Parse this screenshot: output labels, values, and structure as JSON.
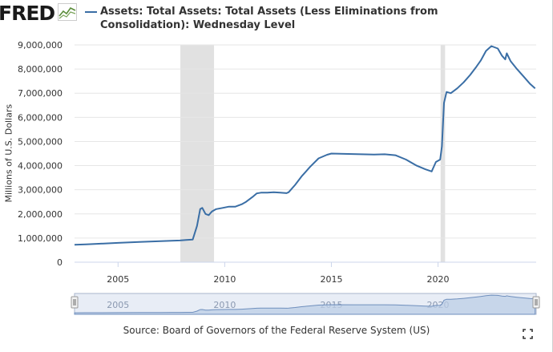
{
  "header": {
    "logo_text": "FRED",
    "title": "Assets: Total Assets: Total Assets (Less Eliminations from Consolidation): Wednesday Level"
  },
  "colors": {
    "series": "#3a6ea5",
    "recession": "#e1e1e1",
    "grid": "#e6e6e6",
    "navigator_fill": "#bccde6",
    "navigator_bg": "#e8edf6"
  },
  "chart_data": {
    "type": "line",
    "title": "Assets: Total Assets: Total Assets (Less Eliminations from Consolidation): Wednesday Level",
    "xlabel": "",
    "ylabel": "Millions of U.S. Dollars",
    "xlim": [
      2002.96,
      2024.6
    ],
    "ylim": [
      0,
      9000000
    ],
    "xticks": [
      2005,
      2010,
      2015,
      2020
    ],
    "yticks": [
      0,
      1000000,
      2000000,
      3000000,
      4000000,
      5000000,
      6000000,
      7000000,
      8000000,
      9000000
    ],
    "ytick_labels": [
      "0",
      "1,000,000",
      "2,000,000",
      "3,000,000",
      "4,000,000",
      "5,000,000",
      "6,000,000",
      "7,000,000",
      "8,000,000",
      "9,000,000"
    ],
    "grid": true,
    "recessions": [
      [
        2007.92,
        2009.5
      ],
      [
        2020.12,
        2020.33
      ]
    ],
    "series": [
      {
        "x": [
          2002.96,
          2003.5,
          2004.0,
          2005.0,
          2006.0,
          2007.0,
          2007.5,
          2007.9,
          2008.2,
          2008.5,
          2008.7,
          2008.85,
          2008.95,
          2009.1,
          2009.25,
          2009.4,
          2009.6,
          2009.9,
          2010.2,
          2010.5,
          2010.8,
          2011.0,
          2011.3,
          2011.5,
          2011.7,
          2012.0,
          2012.3,
          2012.6,
          2012.9,
          2013.0,
          2013.3,
          2013.6,
          2014.0,
          2014.4,
          2014.8,
          2015.0,
          2016.0,
          2017.0,
          2017.5,
          2018.0,
          2018.5,
          2019.0,
          2019.4,
          2019.7,
          2019.9,
          2020.1,
          2020.18,
          2020.28,
          2020.4,
          2020.6,
          2020.9,
          2021.2,
          2021.5,
          2021.8,
          2022.0,
          2022.25,
          2022.5,
          2022.8,
          2023.0,
          2023.15,
          2023.22,
          2023.4,
          2023.7,
          2024.0,
          2024.3,
          2024.55
        ],
        "y": [
          720000,
          740000,
          760000,
          800000,
          840000,
          870000,
          890000,
          900000,
          920000,
          940000,
          1500000,
          2200000,
          2250000,
          2000000,
          1950000,
          2100000,
          2200000,
          2250000,
          2300000,
          2300000,
          2400000,
          2500000,
          2700000,
          2850000,
          2880000,
          2880000,
          2900000,
          2880000,
          2860000,
          2900000,
          3200000,
          3550000,
          3950000,
          4300000,
          4450000,
          4500000,
          4480000,
          4460000,
          4470000,
          4430000,
          4250000,
          4000000,
          3850000,
          3760000,
          4150000,
          4250000,
          4800000,
          6600000,
          7050000,
          7000000,
          7200000,
          7450000,
          7750000,
          8100000,
          8350000,
          8750000,
          8950000,
          8850000,
          8550000,
          8400000,
          8650000,
          8330000,
          8000000,
          7700000,
          7400000,
          7200000
        ]
      }
    ]
  },
  "navigator": {
    "tick_labels": [
      "2005",
      "2010",
      "2015",
      "2020"
    ]
  },
  "footer": {
    "source": "Source: Board of Governors of the Federal Reserve System (US)"
  }
}
